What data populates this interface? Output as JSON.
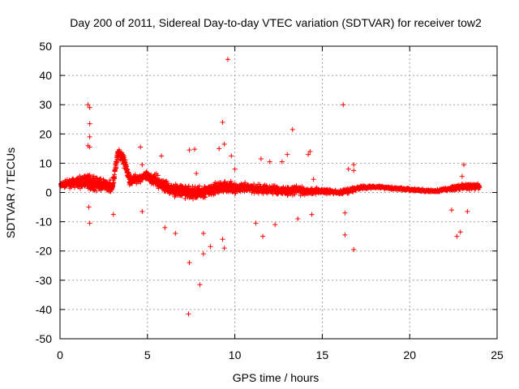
{
  "chart_data": {
    "type": "scatter",
    "title": "Day 200 of 2011, Sidereal Day-to-day VTEC variation (SDTVAR) for receiver tow2",
    "xlabel": "GPS time / hours",
    "ylabel": "SDTVAR / TECUs",
    "xlim": [
      0,
      25
    ],
    "ylim": [
      -50,
      50
    ],
    "xticks": [
      0,
      5,
      10,
      15,
      20,
      25
    ],
    "yticks": [
      -50,
      -40,
      -30,
      -20,
      -10,
      0,
      10,
      20,
      30,
      40,
      50
    ],
    "xtick_labels": [
      "0",
      "5",
      "10",
      "15",
      "20",
      "25"
    ],
    "ytick_labels": [
      "-50",
      "-40",
      "-30",
      "-20",
      "-10",
      "0",
      "10",
      "20",
      "30",
      "40",
      "50"
    ],
    "grid": true,
    "marker": "+",
    "color": "#ff0000",
    "series": [
      {
        "name": "SDTVAR",
        "band": [
          [
            0.0,
            2.5,
            1.5
          ],
          [
            0.5,
            3.0,
            1.8
          ],
          [
            1.0,
            3.5,
            2.5
          ],
          [
            1.5,
            4.0,
            4.0
          ],
          [
            2.0,
            3.0,
            3.5
          ],
          [
            2.5,
            2.5,
            3.0
          ],
          [
            3.0,
            2.0,
            2.5
          ],
          [
            3.3,
            13.0,
            3.0
          ],
          [
            3.6,
            12.0,
            3.0
          ],
          [
            4.0,
            4.0,
            2.5
          ],
          [
            4.5,
            5.0,
            2.5
          ],
          [
            5.0,
            5.5,
            2.5
          ],
          [
            5.5,
            4.0,
            3.0
          ],
          [
            6.0,
            2.0,
            3.0
          ],
          [
            6.5,
            1.0,
            3.0
          ],
          [
            7.0,
            0.5,
            3.5
          ],
          [
            7.5,
            0.0,
            3.5
          ],
          [
            8.0,
            0.0,
            3.5
          ],
          [
            8.5,
            0.5,
            3.5
          ],
          [
            9.0,
            1.5,
            3.0
          ],
          [
            9.5,
            2.0,
            3.0
          ],
          [
            10.0,
            1.5,
            2.5
          ],
          [
            11.0,
            1.5,
            2.5
          ],
          [
            12.0,
            1.0,
            2.5
          ],
          [
            13.0,
            0.5,
            2.5
          ],
          [
            13.5,
            1.0,
            2.5
          ],
          [
            14.0,
            0.5,
            2.0
          ],
          [
            15.0,
            0.5,
            1.5
          ],
          [
            16.0,
            0.0,
            1.0
          ],
          [
            16.5,
            0.5,
            1.5
          ],
          [
            17.0,
            1.5,
            1.0
          ],
          [
            18.0,
            2.0,
            0.8
          ],
          [
            19.0,
            1.5,
            0.8
          ],
          [
            20.0,
            1.0,
            0.7
          ],
          [
            21.0,
            0.5,
            0.7
          ],
          [
            21.5,
            0.5,
            0.7
          ],
          [
            22.0,
            1.0,
            1.0
          ],
          [
            23.0,
            2.0,
            1.5
          ],
          [
            24.0,
            2.0,
            1.5
          ]
        ],
        "spikes": [
          [
            1.6,
            30
          ],
          [
            1.7,
            29
          ],
          [
            1.7,
            23.5
          ],
          [
            1.7,
            19
          ],
          [
            1.6,
            16
          ],
          [
            1.7,
            15.5
          ],
          [
            1.65,
            -5
          ],
          [
            1.7,
            -10.5
          ],
          [
            3.05,
            -7.5
          ],
          [
            4.6,
            15.5
          ],
          [
            4.7,
            9.5
          ],
          [
            4.7,
            -6.5
          ],
          [
            5.8,
            12.5
          ],
          [
            6.0,
            -12
          ],
          [
            6.6,
            -14
          ],
          [
            7.4,
            -24
          ],
          [
            7.35,
            -41.5
          ],
          [
            7.4,
            14.5
          ],
          [
            7.7,
            14.8
          ],
          [
            7.8,
            6.5
          ],
          [
            8.0,
            -31.5
          ],
          [
            8.2,
            -21
          ],
          [
            8.2,
            -14
          ],
          [
            8.6,
            -18.5
          ],
          [
            9.1,
            15
          ],
          [
            9.3,
            24
          ],
          [
            9.4,
            16.5
          ],
          [
            9.6,
            45.5
          ],
          [
            9.3,
            -16
          ],
          [
            9.4,
            -19
          ],
          [
            9.8,
            12.5
          ],
          [
            10.0,
            8
          ],
          [
            11.5,
            11.5
          ],
          [
            11.2,
            -10.5
          ],
          [
            11.6,
            -15
          ],
          [
            12.3,
            -11
          ],
          [
            12.0,
            10.5
          ],
          [
            12.7,
            10.5
          ],
          [
            13.0,
            13
          ],
          [
            13.3,
            21.5
          ],
          [
            13.6,
            -9
          ],
          [
            14.2,
            13
          ],
          [
            14.3,
            14
          ],
          [
            14.4,
            -7.5
          ],
          [
            14.5,
            4.5
          ],
          [
            16.2,
            30
          ],
          [
            16.3,
            -14.5
          ],
          [
            16.8,
            7.5
          ],
          [
            16.8,
            9.5
          ],
          [
            16.8,
            -19.5
          ],
          [
            16.5,
            8
          ],
          [
            16.3,
            -7
          ],
          [
            22.7,
            -15
          ],
          [
            22.9,
            -13.5
          ],
          [
            23.1,
            9.5
          ],
          [
            22.4,
            -6
          ],
          [
            23.3,
            -6.5
          ],
          [
            23.0,
            5.5
          ]
        ]
      }
    ]
  }
}
